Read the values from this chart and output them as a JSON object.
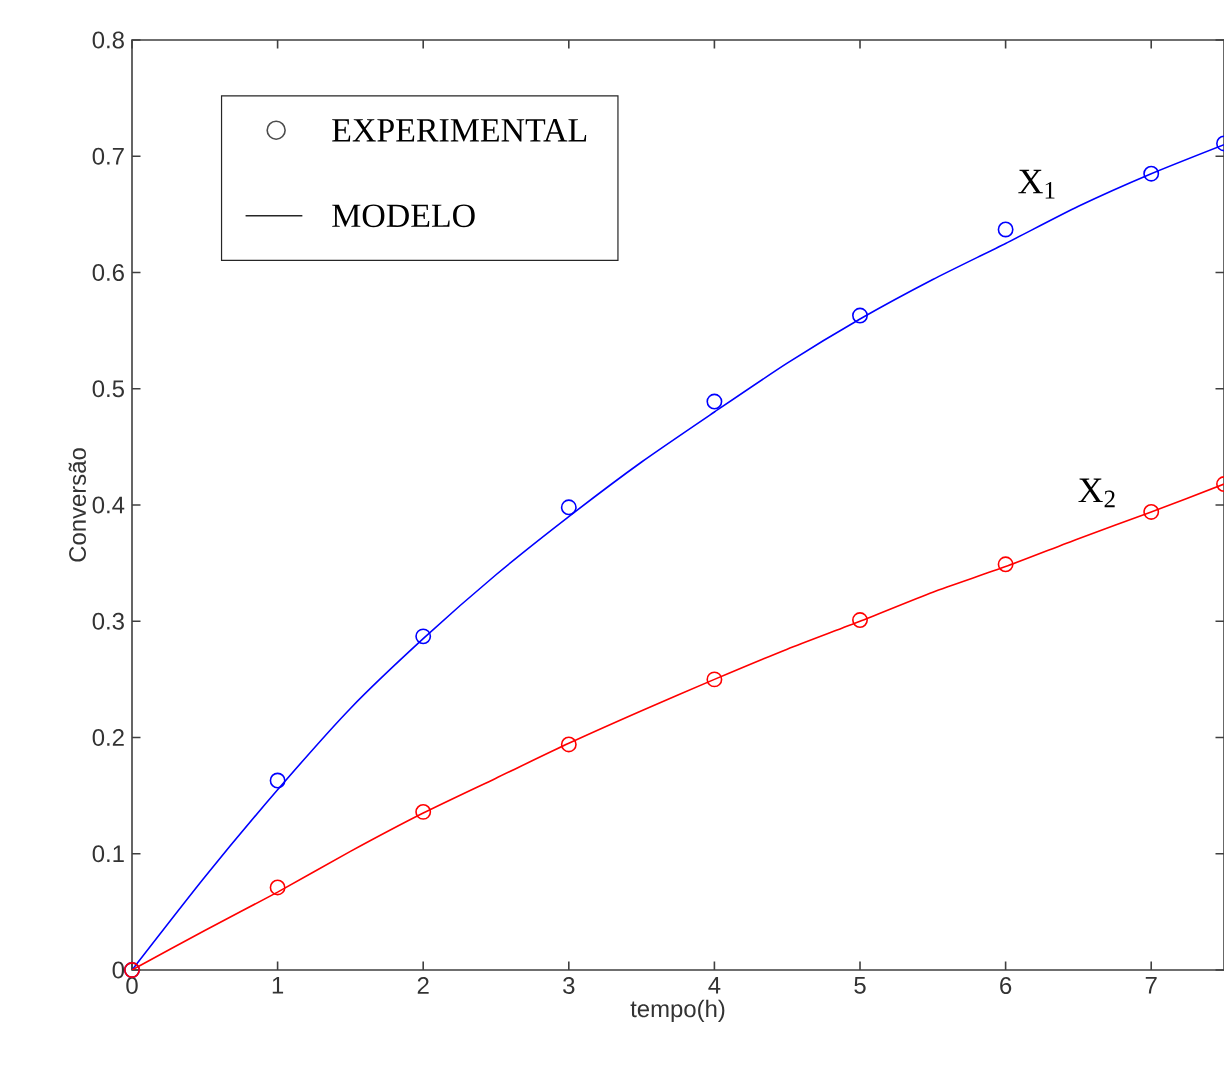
{
  "chart_data": {
    "type": "line",
    "xlabel": "tempo(h)",
    "ylabel": "Conversão",
    "xlim": [
      0,
      7.5
    ],
    "ylim": [
      0,
      0.8
    ],
    "xticks": [
      0,
      1,
      2,
      3,
      4,
      5,
      6,
      7
    ],
    "yticks": [
      0,
      0.1,
      0.2,
      0.3,
      0.4,
      0.5,
      0.6,
      0.7,
      0.8
    ],
    "annotations": [
      "EXPERIMENTAL",
      "MODELO",
      "X$_{1}$",
      "X$_{2}$"
    ],
    "series": [
      {
        "color": "#0000ff",
        "marker": "none",
        "x": [
          0,
          0.5,
          1,
          1.5,
          2,
          2.5,
          3,
          3.5,
          4,
          4.5,
          5,
          5.5,
          6,
          6.5,
          7,
          7.5
        ],
        "values": [
          0,
          0.08,
          0.155,
          0.225,
          0.285,
          0.34,
          0.39,
          0.437,
          0.48,
          0.522,
          0.56,
          0.594,
          0.625,
          0.657,
          0.685,
          0.71
        ]
      },
      {
        "color": "#ff0000",
        "marker": "none",
        "x": [
          0,
          0.5,
          1,
          1.5,
          2,
          2.5,
          3,
          3.5,
          4,
          4.5,
          5,
          5.5,
          6,
          6.5,
          7,
          7.5
        ],
        "values": [
          0,
          0.034,
          0.067,
          0.102,
          0.135,
          0.165,
          0.195,
          0.223,
          0.25,
          0.276,
          0.3,
          0.325,
          0.347,
          0.371,
          0.394,
          0.418
        ]
      },
      {
        "type": "scatter",
        "color": "#0000ff",
        "marker": "circle",
        "x": [
          0,
          1,
          2,
          3,
          4,
          5,
          6,
          7,
          7.5
        ],
        "values": [
          0,
          0.163,
          0.287,
          0.398,
          0.489,
          0.563,
          0.637,
          0.685,
          0.711
        ]
      },
      {
        "type": "scatter",
        "color": "#ff0000",
        "marker": "circle",
        "x": [
          0,
          1,
          2,
          3,
          4,
          5,
          6,
          7,
          7.5
        ],
        "values": [
          0,
          0.071,
          0.136,
          0.194,
          0.25,
          0.301,
          0.349,
          0.394,
          0.418
        ]
      }
    ]
  }
}
